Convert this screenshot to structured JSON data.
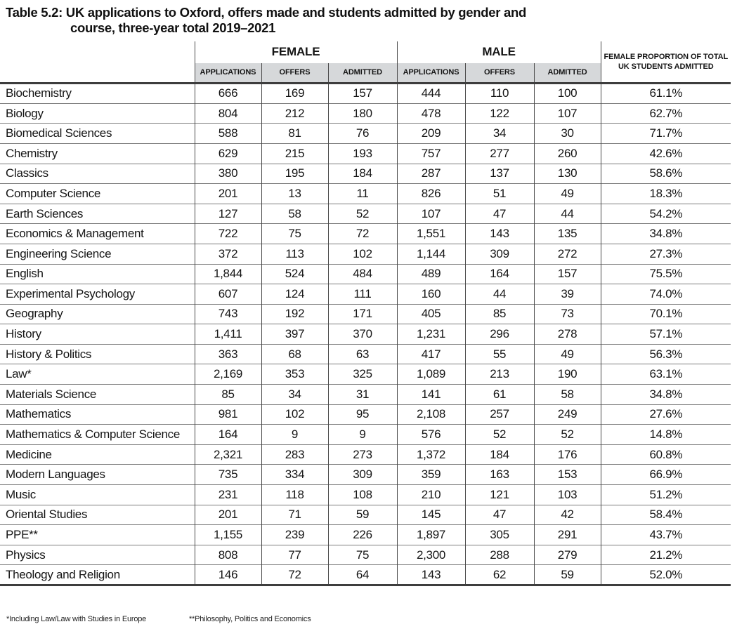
{
  "title": {
    "line1": "Table 5.2: UK applications to Oxford, offers made and students admitted by gender and",
    "line2": "course, three-year total 2019–2021"
  },
  "header": {
    "female_group": "FEMALE",
    "male_group": "MALE",
    "sub_columns": {
      "applications": "APPLICATIONS",
      "offers": "OFFERS",
      "admitted": "ADMITTED"
    },
    "proportion_line1": "FEMALE PROPORTION OF TOTAL",
    "proportion_line2": "UK STUDENTS ADMITTED"
  },
  "colors": {
    "subheader_bg": "#d6d8da",
    "rule_heavy": "#3d3d3d",
    "rule_row": "#7c7c7c"
  },
  "rows": [
    {
      "course": "Biochemistry",
      "female": {
        "applications": "666",
        "offers": "169",
        "admitted": "157"
      },
      "male": {
        "applications": "444",
        "offers": "110",
        "admitted": "100"
      },
      "female_proportion": "61.1%"
    },
    {
      "course": "Biology",
      "female": {
        "applications": "804",
        "offers": "212",
        "admitted": "180"
      },
      "male": {
        "applications": "478",
        "offers": "122",
        "admitted": "107"
      },
      "female_proportion": "62.7%"
    },
    {
      "course": "Biomedical Sciences",
      "female": {
        "applications": "588",
        "offers": "81",
        "admitted": "76"
      },
      "male": {
        "applications": "209",
        "offers": "34",
        "admitted": "30"
      },
      "female_proportion": "71.7%"
    },
    {
      "course": "Chemistry",
      "female": {
        "applications": "629",
        "offers": "215",
        "admitted": "193"
      },
      "male": {
        "applications": "757",
        "offers": "277",
        "admitted": "260"
      },
      "female_proportion": "42.6%"
    },
    {
      "course": "Classics",
      "female": {
        "applications": "380",
        "offers": "195",
        "admitted": "184"
      },
      "male": {
        "applications": "287",
        "offers": "137",
        "admitted": "130"
      },
      "female_proportion": "58.6%"
    },
    {
      "course": "Computer Science",
      "female": {
        "applications": "201",
        "offers": "13",
        "admitted": "11"
      },
      "male": {
        "applications": "826",
        "offers": "51",
        "admitted": "49"
      },
      "female_proportion": "18.3%"
    },
    {
      "course": "Earth Sciences",
      "female": {
        "applications": "127",
        "offers": "58",
        "admitted": "52"
      },
      "male": {
        "applications": "107",
        "offers": "47",
        "admitted": "44"
      },
      "female_proportion": "54.2%"
    },
    {
      "course": "Economics & Management",
      "female": {
        "applications": "722",
        "offers": "75",
        "admitted": "72"
      },
      "male": {
        "applications": "1,551",
        "offers": "143",
        "admitted": "135"
      },
      "female_proportion": "34.8%"
    },
    {
      "course": "Engineering Science",
      "female": {
        "applications": "372",
        "offers": "113",
        "admitted": "102"
      },
      "male": {
        "applications": "1,144",
        "offers": "309",
        "admitted": "272"
      },
      "female_proportion": "27.3%"
    },
    {
      "course": "English",
      "female": {
        "applications": "1,844",
        "offers": "524",
        "admitted": "484"
      },
      "male": {
        "applications": "489",
        "offers": "164",
        "admitted": "157"
      },
      "female_proportion": "75.5%"
    },
    {
      "course": "Experimental Psychology",
      "female": {
        "applications": "607",
        "offers": "124",
        "admitted": "111"
      },
      "male": {
        "applications": "160",
        "offers": "44",
        "admitted": "39"
      },
      "female_proportion": "74.0%"
    },
    {
      "course": "Geography",
      "female": {
        "applications": "743",
        "offers": "192",
        "admitted": "171"
      },
      "male": {
        "applications": "405",
        "offers": "85",
        "admitted": "73"
      },
      "female_proportion": "70.1%"
    },
    {
      "course": "History",
      "female": {
        "applications": "1,411",
        "offers": "397",
        "admitted": "370"
      },
      "male": {
        "applications": "1,231",
        "offers": "296",
        "admitted": "278"
      },
      "female_proportion": "57.1%"
    },
    {
      "course": "History & Politics",
      "female": {
        "applications": "363",
        "offers": "68",
        "admitted": "63"
      },
      "male": {
        "applications": "417",
        "offers": "55",
        "admitted": "49"
      },
      "female_proportion": "56.3%"
    },
    {
      "course": "Law*",
      "female": {
        "applications": "2,169",
        "offers": "353",
        "admitted": "325"
      },
      "male": {
        "applications": "1,089",
        "offers": "213",
        "admitted": "190"
      },
      "female_proportion": "63.1%"
    },
    {
      "course": "Materials Science",
      "female": {
        "applications": "85",
        "offers": "34",
        "admitted": "31"
      },
      "male": {
        "applications": "141",
        "offers": "61",
        "admitted": "58"
      },
      "female_proportion": "34.8%"
    },
    {
      "course": "Mathematics",
      "female": {
        "applications": "981",
        "offers": "102",
        "admitted": "95"
      },
      "male": {
        "applications": "2,108",
        "offers": "257",
        "admitted": "249"
      },
      "female_proportion": "27.6%"
    },
    {
      "course": "Mathematics & Computer Science",
      "female": {
        "applications": "164",
        "offers": "9",
        "admitted": "9"
      },
      "male": {
        "applications": "576",
        "offers": "52",
        "admitted": "52"
      },
      "female_proportion": "14.8%"
    },
    {
      "course": "Medicine",
      "female": {
        "applications": "2,321",
        "offers": "283",
        "admitted": "273"
      },
      "male": {
        "applications": "1,372",
        "offers": "184",
        "admitted": "176"
      },
      "female_proportion": "60.8%"
    },
    {
      "course": "Modern Languages",
      "female": {
        "applications": "735",
        "offers": "334",
        "admitted": "309"
      },
      "male": {
        "applications": "359",
        "offers": "163",
        "admitted": "153"
      },
      "female_proportion": "66.9%"
    },
    {
      "course": "Music",
      "female": {
        "applications": "231",
        "offers": "118",
        "admitted": "108"
      },
      "male": {
        "applications": "210",
        "offers": "121",
        "admitted": "103"
      },
      "female_proportion": "51.2%"
    },
    {
      "course": "Oriental Studies",
      "female": {
        "applications": "201",
        "offers": "71",
        "admitted": "59"
      },
      "male": {
        "applications": "145",
        "offers": "47",
        "admitted": "42"
      },
      "female_proportion": "58.4%"
    },
    {
      "course": "PPE**",
      "female": {
        "applications": "1,155",
        "offers": "239",
        "admitted": "226"
      },
      "male": {
        "applications": "1,897",
        "offers": "305",
        "admitted": "291"
      },
      "female_proportion": "43.7%"
    },
    {
      "course": "Physics",
      "female": {
        "applications": "808",
        "offers": "77",
        "admitted": "75"
      },
      "male": {
        "applications": "2,300",
        "offers": "288",
        "admitted": "279"
      },
      "female_proportion": "21.2%"
    },
    {
      "course": "Theology and Religion",
      "female": {
        "applications": "146",
        "offers": "72",
        "admitted": "64"
      },
      "male": {
        "applications": "143",
        "offers": "62",
        "admitted": "59"
      },
      "female_proportion": "52.0%"
    }
  ],
  "footnotes": {
    "law": "*Including Law/Law with Studies in Europe",
    "ppe": "**Philosophy, Politics and Economics"
  }
}
